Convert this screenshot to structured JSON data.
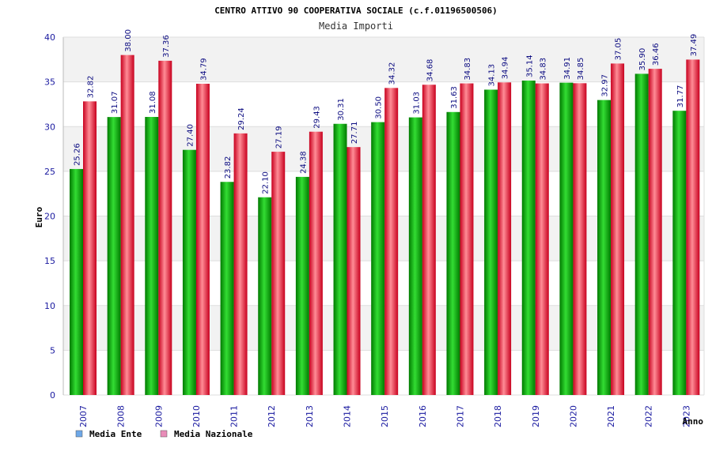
{
  "chart_data": {
    "type": "bar",
    "title": "CENTRO ATTIVO 90 COOPERATIVA SOCIALE (c.f.01196500506)",
    "subtitle": "Media Importi",
    "xlabel": "Anno",
    "ylabel": "Euro",
    "ylim": [
      0,
      40
    ],
    "yticks": [
      0,
      5,
      10,
      15,
      20,
      25,
      30,
      35,
      40
    ],
    "categories": [
      "2007",
      "2008",
      "2009",
      "2010",
      "2011",
      "2012",
      "2013",
      "2014",
      "2015",
      "2016",
      "2017",
      "2018",
      "2019",
      "2020",
      "2021",
      "2022",
      "2023"
    ],
    "series": [
      {
        "name": "Media Ente",
        "values": [
          25.26,
          31.07,
          31.08,
          27.4,
          23.82,
          22.1,
          24.38,
          30.31,
          30.5,
          31.03,
          31.63,
          34.13,
          35.14,
          34.91,
          32.97,
          35.9,
          31.77
        ],
        "labels": [
          "25.26",
          "31.07",
          "31.08",
          "27.40",
          "23.82",
          "22.10",
          "24.38",
          "30.31",
          "30.50",
          "31.03",
          "31.63",
          "34.13",
          "35.14",
          "34.91",
          "32.97",
          "35.90",
          "31.77"
        ]
      },
      {
        "name": "Media Nazionale",
        "values": [
          32.82,
          38.0,
          37.36,
          34.79,
          29.24,
          27.19,
          29.43,
          27.71,
          34.32,
          34.68,
          34.83,
          34.94,
          34.83,
          34.85,
          37.05,
          36.46,
          37.49
        ],
        "labels": [
          "32.82",
          "38.00",
          "37.36",
          "34.79",
          "29.24",
          "27.19",
          "29.43",
          "27.71",
          "34.32",
          "34.68",
          "34.83",
          "34.94",
          "34.83",
          "34.85",
          "37.05",
          "36.46",
          "37.49"
        ]
      }
    ],
    "legend": {
      "placement": "bottom-left",
      "items": [
        {
          "name": "Media Ente",
          "swatch_color": "#6ea8e8"
        },
        {
          "name": "Media Nazionale",
          "swatch_color": "#e88cb8"
        }
      ]
    },
    "colors": {
      "ente_dark": "#007a00",
      "ente_light": "#33dd33",
      "nazionale_dark": "#c8001e",
      "nazionale_light": "#ff8c96",
      "band": "#f2f2f2",
      "grid": "#dddddd"
    }
  }
}
